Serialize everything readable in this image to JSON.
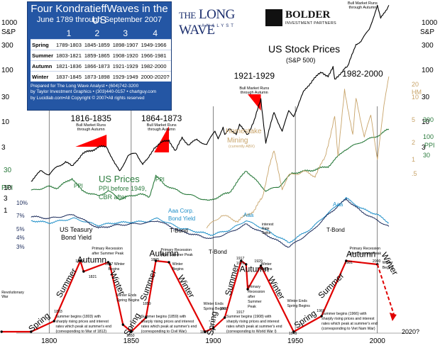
{
  "header": {
    "title": "Four KondratieffWaves in the US",
    "subtitle": "June 1789 through September 2007",
    "wave_numbers": [
      "1",
      "2",
      "3",
      "4"
    ],
    "seasons": [
      {
        "name": "Spring",
        "periods": [
          "1789-1803",
          "1845-1859",
          "1898-1907",
          "1949-1966"
        ]
      },
      {
        "name": "Summer",
        "periods": [
          "1803-1821",
          "1859-1865",
          "1908-1920",
          "1966-1981"
        ]
      },
      {
        "name": "Autumn",
        "periods": [
          "1821-1836",
          "1866-1873",
          "1921-1929",
          "1982-2000"
        ]
      },
      {
        "name": "Winter",
        "periods": [
          "1837-1845",
          "1873-1898",
          "1929-1949",
          "2000-2020?"
        ]
      }
    ],
    "credits": [
      "Prepared for The Long Wave Analyst • (604)742-3200",
      "by Taylor Investment Graphics • (303)440-0157 • chartguy.com",
      "by Lucidlab.com•All Copyright © 2007•All rights reserved"
    ]
  },
  "logos": {
    "longwave": "LONG WAVE",
    "longwave_the": "THE",
    "longwave_sub": "ANALYST",
    "bolder": "BOLDER",
    "bolder_sub": "INVESTMENT PARTNERS"
  },
  "colors": {
    "stock": "#000000",
    "ppi": "#2a7a3c",
    "homestake": "#c8a46a",
    "aaa": "#1f8fc8",
    "tbond": "#1a2a5a",
    "wave": "#e00000",
    "bull_fill": "#ff0000",
    "box_blue": "#2456a4",
    "title_blue": "#1c2f6e"
  },
  "annotations": {
    "us_stock_prices": "US Stock Prices",
    "sp500": "(S&P 500)",
    "us_prices": "US Prices",
    "ppi_before": "PPI before 1949,",
    "cbr_after": "CBR after",
    "homestake": "Homestake",
    "mining": "Mining",
    "abx": "(currently ABX)",
    "us_treasury": "US Teasury",
    "bond_yield": "Bond Yield",
    "aaa_corp": "Aaa Corp.",
    "bond_yield2": "Bond Yield",
    "interest": "interest",
    "rate": "Rate",
    "spike": "Spike",
    "ppi_label": "PPI",
    "aaa_label": "Aaa",
    "tbond_label": "T-Bond",
    "bull_runs": "Bull Market Runs",
    "through_autumn": "through Autumn",
    "left_scale_label": "S&P",
    "left_ppi": "PPI",
    "right_scale_label": "S&P",
    "hm": "HM",
    "right_ppi": "PPI",
    "year_2020": "2020?"
  },
  "bull_periods": [
    {
      "label": "1816-1835",
      "start": 1816,
      "end": 1835
    },
    {
      "label": "1864-1873",
      "start": 1864,
      "end": 1873
    },
    {
      "label": "1921-1929",
      "start": 1921,
      "end": 1929
    },
    {
      "label": "1982-2000",
      "start": 1982,
      "end": 2000
    }
  ],
  "season_labels": [
    {
      "text": "Spring",
      "year": 1795,
      "rotate": -40
    },
    {
      "text": "Summer",
      "year": 1812,
      "rotate": -60
    },
    {
      "text": "Autumn",
      "year": 1826,
      "rotate": 0
    },
    {
      "text": "Winter",
      "year": 1840,
      "rotate": 65
    },
    {
      "text": "Spring",
      "year": 1852,
      "rotate": -60
    },
    {
      "text": "Summer",
      "year": 1862,
      "rotate": -70
    },
    {
      "text": "Autumn",
      "year": 1870,
      "rotate": 0
    },
    {
      "text": "Winter",
      "year": 1882,
      "rotate": 60
    },
    {
      "text": "Spring",
      "year": 1901,
      "rotate": -80
    },
    {
      "text": "Summer",
      "year": 1913,
      "rotate": -75
    },
    {
      "text": "Autumn",
      "year": 1925,
      "rotate": 0
    },
    {
      "text": "Winter",
      "year": 1937,
      "rotate": 60
    },
    {
      "text": "Spring",
      "year": 1957,
      "rotate": -35
    },
    {
      "text": "Summer",
      "year": 1973,
      "rotate": -45
    },
    {
      "text": "Autumn",
      "year": 1990,
      "rotate": 0
    },
    {
      "text": "Winter",
      "year": 2006,
      "rotate": 60
    }
  ],
  "small_notes": [
    {
      "text": "Revolutionary",
      "year": 1771,
      "y": 414
    },
    {
      "text": "War",
      "year": 1771,
      "y": 420
    },
    {
      "text": "1803",
      "year": 1803,
      "y": 441
    },
    {
      "text": "Summer begins (1803) with",
      "year": 1804,
      "y": 448
    },
    {
      "text": "sharply rising prices and interest",
      "year": 1804,
      "y": 455
    },
    {
      "text": "rates which peak at summer's end",
      "year": 1804,
      "y": 462
    },
    {
      "text": "(corresponding to War of 1812)",
      "year": 1804,
      "y": 469
    },
    {
      "text": "1819",
      "year": 1816,
      "y": 370
    },
    {
      "text": "1821",
      "year": 1824,
      "y": 392
    },
    {
      "text": "Winter Ends",
      "year": 1841,
      "y": 418
    },
    {
      "text": "Spring Begins",
      "year": 1841,
      "y": 425
    },
    {
      "text": "1859",
      "year": 1857,
      "y": 430
    },
    {
      "text": "Summer begins (1859) with",
      "year": 1856,
      "y": 448
    },
    {
      "text": "sharply rising prices and interest",
      "year": 1856,
      "y": 455
    },
    {
      "text": "rates which peak at summer's end",
      "year": 1856,
      "y": 462
    },
    {
      "text": "(corresponding to Civil War)",
      "year": 1856,
      "y": 469
    },
    {
      "text": "1850",
      "year": 1847,
      "y": 475
    },
    {
      "text": "Primary Recession",
      "year": 1826,
      "y": 352
    },
    {
      "text": "after Summer Peak",
      "year": 1826,
      "y": 359
    },
    {
      "text": "1837 Winter",
      "year": 1834,
      "y": 374
    },
    {
      "text": "Begins",
      "year": 1836,
      "y": 381
    },
    {
      "text": "1865",
      "year": 1862,
      "y": 368
    },
    {
      "text": "Primary Recession",
      "year": 1868,
      "y": 354
    },
    {
      "text": "After Summer Peak",
      "year": 1868,
      "y": 361
    },
    {
      "text": "Winter",
      "year": 1875,
      "y": 374
    },
    {
      "text": "Begins",
      "year": 1875,
      "y": 381
    },
    {
      "text": "Winter Ends",
      "year": 1894,
      "y": 430
    },
    {
      "text": "Spring Begins",
      "year": 1894,
      "y": 437
    },
    {
      "text": "1907",
      "year": 1904,
      "y": 437
    },
    {
      "text": "Summer begins (1908) with",
      "year": 1908,
      "y": 448
    },
    {
      "text": "sharply rising prices and interest",
      "year": 1908,
      "y": 455
    },
    {
      "text": "rates which peak at summer's end",
      "year": 1908,
      "y": 462
    },
    {
      "text": "(corresponding to World War I)",
      "year": 1908,
      "y": 469
    },
    {
      "text": "1917",
      "year": 1914,
      "y": 366
    },
    {
      "text": "1920",
      "year": 1914,
      "y": 373
    },
    {
      "text": "1929",
      "year": 1925,
      "y": 370
    },
    {
      "text": "Winter",
      "year": 1929,
      "y": 374
    },
    {
      "text": "Begins",
      "year": 1929,
      "y": 381
    },
    {
      "text": "Primary",
      "year": 1921,
      "y": 406
    },
    {
      "text": "Recession",
      "year": 1921,
      "y": 413
    },
    {
      "text": "after",
      "year": 1921,
      "y": 420
    },
    {
      "text": "Summer",
      "year": 1921,
      "y": 427
    },
    {
      "text": "Peak",
      "year": 1921,
      "y": 434
    },
    {
      "text": "Winter Ends",
      "year": 1945,
      "y": 426
    },
    {
      "text": "Spring Begins",
      "year": 1945,
      "y": 433
    },
    {
      "text": "1966",
      "year": 1963,
      "y": 440
    },
    {
      "text": "Summer begins (1966) with",
      "year": 1966,
      "y": 444
    },
    {
      "text": "sharply rising prices and interest",
      "year": 1966,
      "y": 451
    },
    {
      "text": "rates which peak at summer's end",
      "year": 1966,
      "y": 458
    },
    {
      "text": "(corresponding to Viet Nam War)",
      "year": 1966,
      "y": 465
    },
    {
      "text": "1949",
      "year": 1946,
      "y": 472
    },
    {
      "text": "1981",
      "year": 1980,
      "y": 372
    },
    {
      "text": "Primary Recession",
      "year": 1983,
      "y": 352
    },
    {
      "text": "after Summer Peak",
      "year": 1983,
      "y": 359
    },
    {
      "text": "2000",
      "year": 1997,
      "y": 370
    },
    {
      "text": "Winter",
      "year": 2003,
      "y": 372
    },
    {
      "text": "Begins",
      "year": 2003,
      "y": 379
    },
    {
      "text": "1895",
      "year": 1892,
      "y": 470
    },
    {
      "text": "1917",
      "year": 1914,
      "y": 442
    }
  ],
  "chart_data": {
    "type": "line",
    "title": "Four KondratieffWaves in the US",
    "x_ticks": [
      1800,
      1850,
      1900,
      1950,
      2000
    ],
    "xlim": [
      1780,
      2020
    ],
    "left_sp_ticks": [
      "1000",
      "300",
      "100",
      "30",
      "10",
      "3"
    ],
    "right_sp_ticks": [
      "1000",
      "300",
      "100",
      "30",
      "10",
      "3"
    ],
    "left_lower_ticks": [
      "30",
      "10",
      "3",
      "1"
    ],
    "right_lower_ticks": [
      "1000",
      "300",
      "100",
      "30",
      "10",
      "3"
    ],
    "hm_ticks": [
      "20",
      "10",
      "5",
      "2",
      "1",
      ".5"
    ],
    "ppi_ticks": [
      "300",
      "100",
      "30"
    ],
    "yield_ticks": [
      "10%",
      "7%",
      "5%",
      "4%",
      "3%"
    ],
    "wave_points": [
      {
        "year": 1771,
        "level": 0
      },
      {
        "year": 1789,
        "level": 0
      },
      {
        "year": 1803,
        "level": 0.15
      },
      {
        "year": 1819,
        "level": 1
      },
      {
        "year": 1821,
        "level": 0.85
      },
      {
        "year": 1836,
        "level": 0.98
      },
      {
        "year": 1837,
        "level": 0.95
      },
      {
        "year": 1845,
        "level": 0.1
      },
      {
        "year": 1850,
        "level": 0
      },
      {
        "year": 1859,
        "level": 0.2
      },
      {
        "year": 1865,
        "level": 1
      },
      {
        "year": 1873,
        "level": 0.98
      },
      {
        "year": 1895,
        "level": 0
      },
      {
        "year": 1900,
        "level": 0.05
      },
      {
        "year": 1907,
        "level": 0.2
      },
      {
        "year": 1917,
        "level": 1
      },
      {
        "year": 1920,
        "level": 0.95
      },
      {
        "year": 1921,
        "level": 0.6
      },
      {
        "year": 1929,
        "level": 0.93
      },
      {
        "year": 1949,
        "level": 0
      },
      {
        "year": 1966,
        "level": 0.22
      },
      {
        "year": 1981,
        "level": 1
      },
      {
        "year": 2000,
        "level": 0.95
      }
    ],
    "wave_projection": [
      {
        "year": 2000,
        "level": 0.95
      },
      {
        "year": 2010,
        "level": 0.25
      }
    ],
    "stock": [
      {
        "year": 1789,
        "sp": 1.0
      },
      {
        "year": 1795,
        "sp": 1.5
      },
      {
        "year": 1800,
        "sp": 1.3
      },
      {
        "year": 1805,
        "sp": 1.8
      },
      {
        "year": 1810,
        "sp": 2.2
      },
      {
        "year": 1814,
        "sp": 1.8
      },
      {
        "year": 1816,
        "sp": 2.2
      },
      {
        "year": 1820,
        "sp": 3.0
      },
      {
        "year": 1825,
        "sp": 3.5
      },
      {
        "year": 1830,
        "sp": 4.0
      },
      {
        "year": 1835,
        "sp": 4.2
      },
      {
        "year": 1840,
        "sp": 2.0
      },
      {
        "year": 1843,
        "sp": 1.5
      },
      {
        "year": 1848,
        "sp": 2.8
      },
      {
        "year": 1853,
        "sp": 3.2
      },
      {
        "year": 1857,
        "sp": 2.0
      },
      {
        "year": 1860,
        "sp": 2.4
      },
      {
        "year": 1864,
        "sp": 4.0
      },
      {
        "year": 1868,
        "sp": 4.8
      },
      {
        "year": 1873,
        "sp": 5.5
      },
      {
        "year": 1877,
        "sp": 3.4
      },
      {
        "year": 1881,
        "sp": 6.0
      },
      {
        "year": 1885,
        "sp": 4.5
      },
      {
        "year": 1890,
        "sp": 5.5
      },
      {
        "year": 1896,
        "sp": 4.5
      },
      {
        "year": 1901,
        "sp": 8.0
      },
      {
        "year": 1903,
        "sp": 6.0
      },
      {
        "year": 1906,
        "sp": 9.0
      },
      {
        "year": 1907,
        "sp": 6.5
      },
      {
        "year": 1910,
        "sp": 9.0
      },
      {
        "year": 1914,
        "sp": 7.0
      },
      {
        "year": 1916,
        "sp": 10.0
      },
      {
        "year": 1921,
        "sp": 7.0
      },
      {
        "year": 1925,
        "sp": 12.0
      },
      {
        "year": 1929,
        "sp": 30.0
      },
      {
        "year": 1932,
        "sp": 5.0
      },
      {
        "year": 1937,
        "sp": 17.0
      },
      {
        "year": 1942,
        "sp": 8.0
      },
      {
        "year": 1946,
        "sp": 18.0
      },
      {
        "year": 1949,
        "sp": 15.0
      },
      {
        "year": 1955,
        "sp": 40.0
      },
      {
        "year": 1961,
        "sp": 70.0
      },
      {
        "year": 1966,
        "sp": 90.0
      },
      {
        "year": 1970,
        "sp": 80.0
      },
      {
        "year": 1973,
        "sp": 110.0
      },
      {
        "year": 1974,
        "sp": 65.0
      },
      {
        "year": 1980,
        "sp": 110.0
      },
      {
        "year": 1982,
        "sp": 115.0
      },
      {
        "year": 1987,
        "sp": 300.0
      },
      {
        "year": 1990,
        "sp": 330.0
      },
      {
        "year": 1995,
        "sp": 550.0
      },
      {
        "year": 2000,
        "sp": 1450.0
      },
      {
        "year": 2002,
        "sp": 850.0
      },
      {
        "year": 2007,
        "sp": 1500.0
      }
    ],
    "ppi": [
      {
        "year": 1789,
        "v": 95
      },
      {
        "year": 1800,
        "v": 110
      },
      {
        "year": 1805,
        "v": 105
      },
      {
        "year": 1814,
        "v": 150
      },
      {
        "year": 1820,
        "v": 95
      },
      {
        "year": 1830,
        "v": 78
      },
      {
        "year": 1836,
        "v": 95
      },
      {
        "year": 1843,
        "v": 70
      },
      {
        "year": 1855,
        "v": 85
      },
      {
        "year": 1861,
        "v": 75
      },
      {
        "year": 1865,
        "v": 165
      },
      {
        "year": 1870,
        "v": 120
      },
      {
        "year": 1880,
        "v": 90
      },
      {
        "year": 1890,
        "v": 75
      },
      {
        "year": 1897,
        "v": 65
      },
      {
        "year": 1910,
        "v": 90
      },
      {
        "year": 1920,
        "v": 200
      },
      {
        "year": 1932,
        "v": 95
      },
      {
        "year": 1940,
        "v": 110
      },
      {
        "year": 1948,
        "v": 180
      },
      {
        "year": 1960,
        "v": 200
      },
      {
        "year": 1970,
        "v": 230
      },
      {
        "year": 1980,
        "v": 420
      },
      {
        "year": 1990,
        "v": 560
      },
      {
        "year": 2000,
        "v": 700
      },
      {
        "year": 2007,
        "v": 900
      }
    ],
    "homestake": [
      {
        "year": 1896,
        "hm": 0.6
      },
      {
        "year": 1905,
        "hm": 0.8
      },
      {
        "year": 1915,
        "hm": 0.7
      },
      {
        "year": 1925,
        "hm": 0.9
      },
      {
        "year": 1930,
        "hm": 1.2
      },
      {
        "year": 1934,
        "hm": 2.5
      },
      {
        "year": 1937,
        "hm": 3.5
      },
      {
        "year": 1942,
        "hm": 1.5
      },
      {
        "year": 1946,
        "hm": 2.0
      },
      {
        "year": 1955,
        "hm": 2.2
      },
      {
        "year": 1962,
        "hm": 2.0
      },
      {
        "year": 1968,
        "hm": 3.0
      },
      {
        "year": 1974,
        "hm": 8.0
      },
      {
        "year": 1976,
        "hm": 3.0
      },
      {
        "year": 1980,
        "hm": 15.0
      },
      {
        "year": 1985,
        "hm": 5.0
      },
      {
        "year": 1987,
        "hm": 12.0
      },
      {
        "year": 1992,
        "hm": 5.0
      },
      {
        "year": 1996,
        "hm": 8.0
      },
      {
        "year": 2000,
        "hm": 3.0
      },
      {
        "year": 2004,
        "hm": 10.0
      },
      {
        "year": 2007,
        "hm": 20.0
      }
    ],
    "aaa": [
      {
        "year": 1789,
        "y": 6.0
      },
      {
        "year": 1800,
        "y": 5.5
      },
      {
        "year": 1815,
        "y": 6.5
      },
      {
        "year": 1830,
        "y": 5.0
      },
      {
        "year": 1840,
        "y": 5.5
      },
      {
        "year": 1860,
        "y": 5.8
      },
      {
        "year": 1866,
        "y": 6.5
      },
      {
        "year": 1880,
        "y": 4.5
      },
      {
        "year": 1899,
        "y": 3.5
      },
      {
        "year": 1910,
        "y": 4.2
      },
      {
        "year": 1920,
        "y": 6.0
      },
      {
        "year": 1930,
        "y": 4.5
      },
      {
        "year": 1946,
        "y": 2.6
      },
      {
        "year": 1960,
        "y": 4.5
      },
      {
        "year": 1970,
        "y": 8.0
      },
      {
        "year": 1981,
        "y": 14.0
      },
      {
        "year": 1990,
        "y": 9.5
      },
      {
        "year": 2000,
        "y": 7.5
      },
      {
        "year": 2007,
        "y": 5.5
      }
    ],
    "tbond": [
      {
        "year": 1789,
        "y": 7.0
      },
      {
        "year": 1800,
        "y": 6.5
      },
      {
        "year": 1815,
        "y": 7.5
      },
      {
        "year": 1830,
        "y": 4.5
      },
      {
        "year": 1840,
        "y": 5.0
      },
      {
        "year": 1860,
        "y": 5.5
      },
      {
        "year": 1866,
        "y": 6.0
      },
      {
        "year": 1880,
        "y": 4.0
      },
      {
        "year": 1899,
        "y": 3.0
      },
      {
        "year": 1910,
        "y": 3.8
      },
      {
        "year": 1920,
        "y": 5.2
      },
      {
        "year": 1930,
        "y": 3.8
      },
      {
        "year": 1946,
        "y": 2.2
      },
      {
        "year": 1960,
        "y": 4.0
      },
      {
        "year": 1970,
        "y": 7.5
      },
      {
        "year": 1981,
        "y": 13.5
      },
      {
        "year": 1990,
        "y": 8.5
      },
      {
        "year": 2000,
        "y": 6.0
      },
      {
        "year": 2007,
        "y": 4.8
      }
    ]
  }
}
